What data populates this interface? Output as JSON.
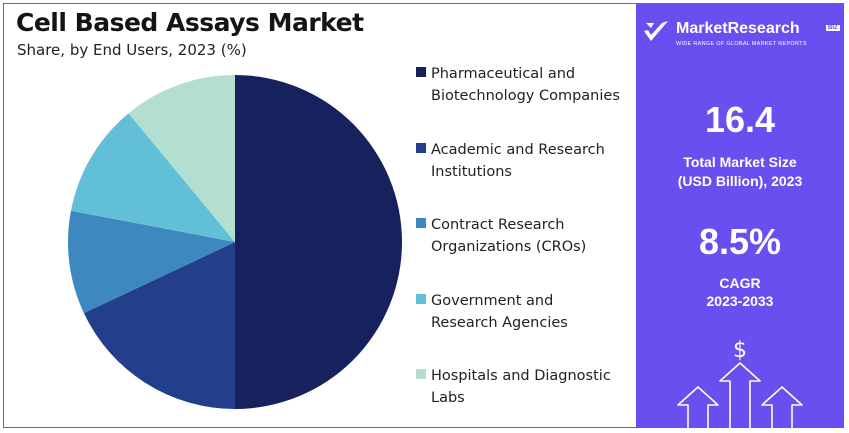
{
  "header": {
    "title": "Cell Based Assays Market",
    "subtitle": "Share, by End Users, 2023 (%)"
  },
  "chart_data": {
    "type": "pie",
    "categories": [
      "Pharmaceutical and Biotechnology Companies",
      "Academic and Research Institutions",
      "Contract Research Organizations (CROs)",
      "Government and Research Agencies",
      "Hospitals and Diagnostic Labs"
    ],
    "values": [
      50,
      18,
      10,
      11,
      11
    ],
    "colors": [
      "#17215e",
      "#233f8c",
      "#3d88bf",
      "#61c0d8",
      "#b3dfd0"
    ],
    "legend_position": "right",
    "start": "top",
    "direction": "clockwise"
  },
  "legend": {
    "items": [
      {
        "lines": [
          "Pharmaceutical and",
          "Biotechnology Companies"
        ]
      },
      {
        "lines": [
          "Academic and Research",
          "Institutions"
        ]
      },
      {
        "lines": [
          "Contract Research",
          "Organizations (CROs)"
        ]
      },
      {
        "lines": [
          "Government and",
          "Research Agencies"
        ]
      },
      {
        "lines": [
          "Hospitals and Diagnostic",
          "Labs"
        ]
      }
    ]
  },
  "brand": {
    "name": "MarketResearch",
    "badge": "BIZ",
    "tagline": "WIDE RANGE OF GLOBAL MARKET REPORTS",
    "icon": "check-logo-icon"
  },
  "stats": {
    "market_size_value": "16.4",
    "market_size_label_1": "Total Market Size",
    "market_size_label_2": "(USD Billion), 2023",
    "cagr_value": "8.5%",
    "cagr_label_1": "CAGR",
    "cagr_label_2": "2023-2033"
  },
  "growth_graphic": {
    "symbol": "$",
    "icon": "growth-arrows-icon"
  },
  "theme": {
    "panel_color": "#6b4ef0",
    "title_color": "#141414"
  }
}
